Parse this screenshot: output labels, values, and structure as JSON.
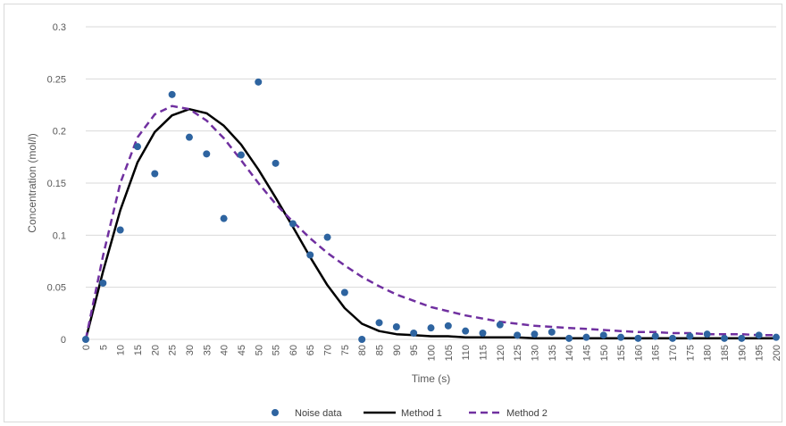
{
  "chart_data": {
    "type": "scatter",
    "title": "",
    "xlabel": "Time (s)",
    "ylabel": "Concentration (mol/l)",
    "xlim": [
      0,
      200
    ],
    "ylim": [
      0,
      0.3
    ],
    "x_ticks": [
      "0",
      "5",
      "10",
      "15",
      "20",
      "25",
      "30",
      "35",
      "40",
      "45",
      "50",
      "55",
      "60",
      "65",
      "70",
      "75",
      "80",
      "85",
      "90",
      "95",
      "100",
      "105",
      "110",
      "115",
      "120",
      "125",
      "130",
      "135",
      "140",
      "145",
      "150",
      "155",
      "160",
      "165",
      "170",
      "175",
      "180",
      "185",
      "190",
      "195",
      "200"
    ],
    "y_ticks": [
      "0",
      "0.05",
      "0.1",
      "0.15",
      "0.2",
      "0.25",
      "0.3"
    ],
    "grid": "horizontal",
    "legend_position": "bottom",
    "series": [
      {
        "name": "Noise data",
        "kind": "scatter",
        "color": "#2e64a0",
        "x": [
          0,
          5,
          10,
          15,
          20,
          25,
          30,
          35,
          40,
          45,
          50,
          55,
          60,
          65,
          70,
          75,
          80,
          85,
          90,
          95,
          100,
          105,
          110,
          115,
          120,
          125,
          130,
          135,
          140,
          145,
          150,
          155,
          160,
          165,
          170,
          175,
          180,
          185,
          190,
          195,
          200
        ],
        "y": [
          0,
          0.054,
          0.105,
          0.185,
          0.159,
          0.235,
          0.194,
          0.178,
          0.116,
          0.177,
          0.247,
          0.169,
          0.111,
          0.081,
          0.098,
          0.045,
          0,
          0.016,
          0.012,
          0.006,
          0.011,
          0.013,
          0.008,
          0.006,
          0.014,
          0.004,
          0.005,
          0.007,
          0.001,
          0.002,
          0.004,
          0.002,
          0.001,
          0.003,
          0.001,
          0.003,
          0.005,
          0.001,
          0.001,
          0.004,
          0.002
        ]
      },
      {
        "name": "Method 1",
        "kind": "line",
        "style": "solid",
        "color": "#000000",
        "x": [
          0,
          5,
          10,
          15,
          20,
          25,
          30,
          35,
          40,
          45,
          50,
          55,
          60,
          65,
          70,
          75,
          80,
          85,
          90,
          95,
          100,
          105,
          110,
          115,
          120,
          125,
          130,
          135,
          140,
          145,
          150,
          155,
          160,
          165,
          170,
          175,
          180,
          185,
          190,
          195,
          200
        ],
        "y": [
          0,
          0.065,
          0.124,
          0.17,
          0.199,
          0.215,
          0.221,
          0.217,
          0.205,
          0.187,
          0.163,
          0.136,
          0.108,
          0.079,
          0.052,
          0.03,
          0.015,
          0.008,
          0.005,
          0.004,
          0.003,
          0.003,
          0.002,
          0.002,
          0.002,
          0.002,
          0.001,
          0.001,
          0.001,
          0.001,
          0.001,
          0.001,
          0.001,
          0.001,
          0.001,
          0.001,
          0.001,
          0.001,
          0.001,
          0.001,
          0.001
        ]
      },
      {
        "name": "Method 2",
        "kind": "line",
        "style": "dashed",
        "color": "#7030a0",
        "x": [
          0,
          5,
          10,
          15,
          20,
          25,
          30,
          35,
          40,
          45,
          50,
          55,
          60,
          65,
          70,
          75,
          80,
          85,
          90,
          95,
          100,
          105,
          110,
          115,
          120,
          125,
          130,
          135,
          140,
          145,
          150,
          155,
          160,
          165,
          170,
          175,
          180,
          185,
          190,
          195,
          200
        ],
        "y": [
          0,
          0.08,
          0.15,
          0.194,
          0.216,
          0.224,
          0.221,
          0.21,
          0.193,
          0.172,
          0.15,
          0.13,
          0.113,
          0.097,
          0.083,
          0.071,
          0.06,
          0.051,
          0.043,
          0.037,
          0.031,
          0.027,
          0.023,
          0.02,
          0.017,
          0.015,
          0.013,
          0.012,
          0.011,
          0.01,
          0.009,
          0.008,
          0.007,
          0.007,
          0.006,
          0.006,
          0.005,
          0.005,
          0.005,
          0.004,
          0.004
        ]
      }
    ]
  }
}
